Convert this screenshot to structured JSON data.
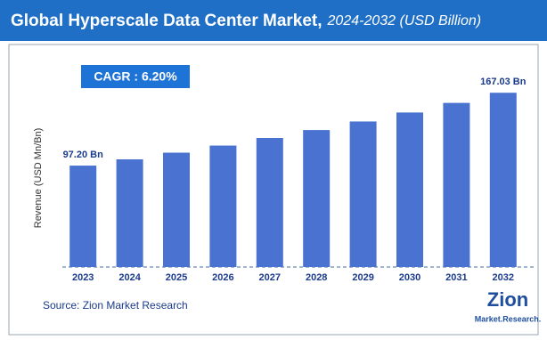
{
  "chart_data": {
    "type": "bar",
    "title": "Global Hyperscale Data Center Market,",
    "subtitle": "2024-2032 (USD Billion)",
    "y_label": "Revenue (USD Mn/Bn)",
    "annotation": "CAGR : 6.20%",
    "source": "Source: Zion Market Research",
    "logo": [
      "Zion",
      "Market.Research."
    ],
    "categories": [
      "2023",
      "2024",
      "2025",
      "2026",
      "2027",
      "2028",
      "2029",
      "2030",
      "2031",
      "2032"
    ],
    "values": [
      97.2,
      103.2,
      109.6,
      116.4,
      123.7,
      131.3,
      139.5,
      148.1,
      157.3,
      167.03
    ],
    "value_labels": [
      "97.20 Bn",
      null,
      null,
      null,
      null,
      null,
      null,
      null,
      null,
      "167.03 Bn"
    ],
    "color": "#4a72d0",
    "ylim": [
      0,
      180
    ]
  }
}
